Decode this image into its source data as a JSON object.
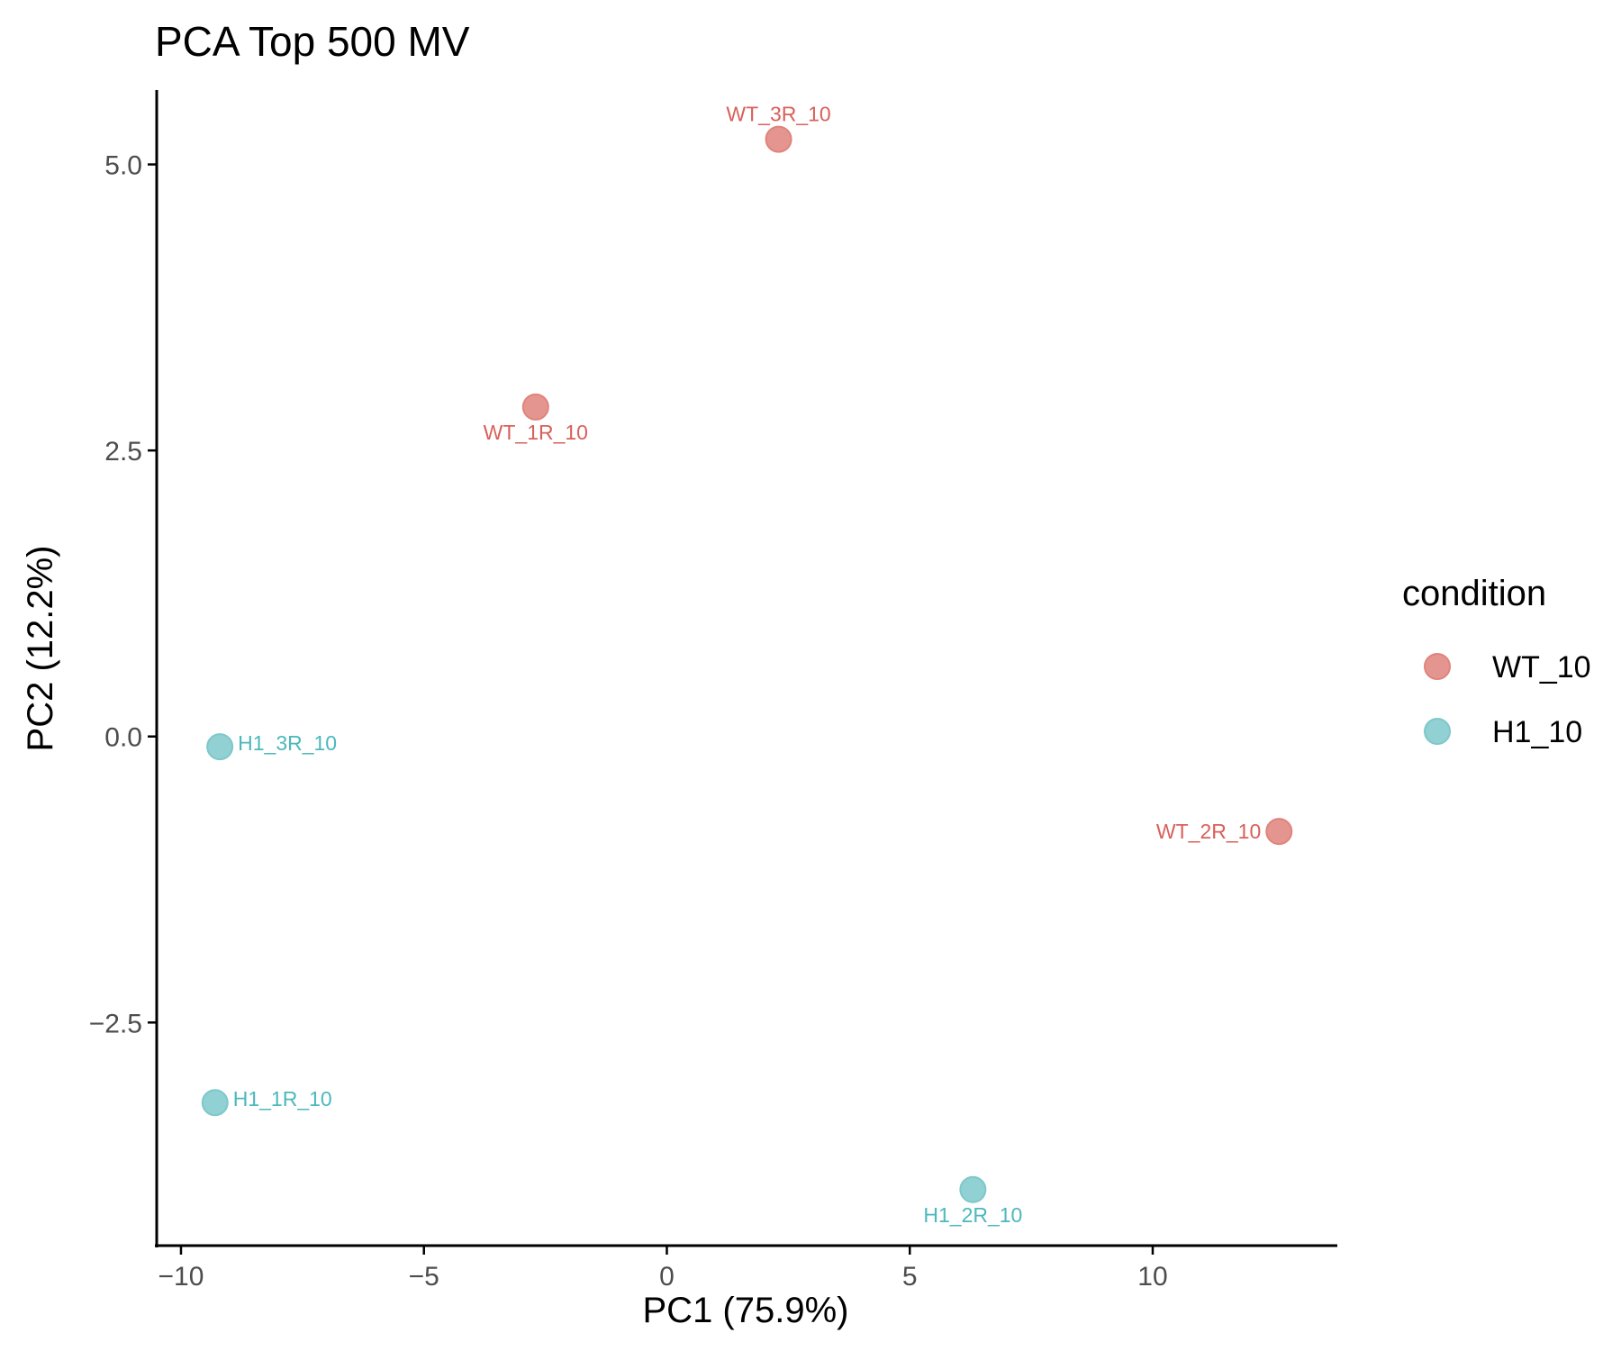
{
  "chart_data": {
    "type": "scatter",
    "title": "PCA Top 500 MV",
    "xlabel": "PC1 (75.9%)",
    "ylabel": "PC2 (12.2%)",
    "xlim": [
      -10.5,
      13.8
    ],
    "ylim": [
      -4.45,
      5.65
    ],
    "x_ticks": [
      -10,
      -5,
      0,
      5,
      10
    ],
    "x_tick_labels": [
      "−10",
      "−5",
      "0",
      "5",
      "10"
    ],
    "y_ticks": [
      -2.5,
      0.0,
      2.5,
      5.0
    ],
    "y_tick_labels": [
      "−2.5",
      "0.0",
      "2.5",
      "5.0"
    ],
    "grid": false,
    "legend": {
      "title": "condition",
      "placement": "right"
    },
    "series": [
      {
        "name": "WT_10",
        "color": "#e0837b",
        "label_color": "#d9605a",
        "points": [
          {
            "label": "WT_3R_10",
            "x": 2.3,
            "y": 5.22,
            "label_pos": "above"
          },
          {
            "label": "WT_1R_10",
            "x": -2.7,
            "y": 2.88,
            "label_pos": "below"
          },
          {
            "label": "WT_2R_10",
            "x": 12.6,
            "y": -0.83,
            "label_pos": "left"
          }
        ]
      },
      {
        "name": "H1_10",
        "color": "#7ec8cb",
        "label_color": "#4cb8bc",
        "points": [
          {
            "label": "H1_3R_10",
            "x": -9.2,
            "y": -0.09,
            "label_pos": "right"
          },
          {
            "label": "H1_1R_10",
            "x": -9.3,
            "y": -3.2,
            "label_pos": "right"
          },
          {
            "label": "H1_2R_10",
            "x": 6.3,
            "y": -3.96,
            "label_pos": "below"
          }
        ]
      }
    ]
  }
}
